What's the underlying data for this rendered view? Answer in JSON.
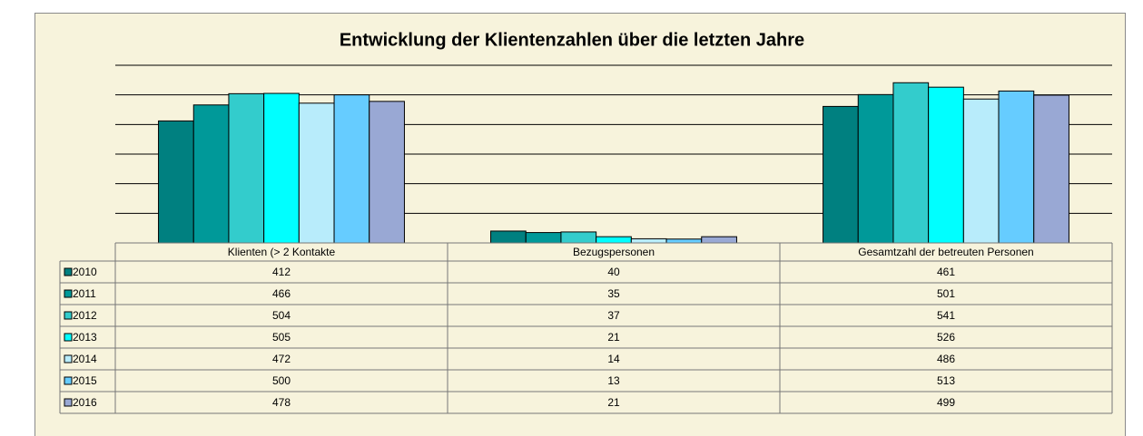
{
  "chart_data": {
    "type": "bar",
    "title": "Entwicklung der Klientenzahlen über die letzten Jahre",
    "categories": [
      "Klienten (> 2 Kontakte",
      "Bezugspersonen",
      "Gesamtzahl der betreuten Personen"
    ],
    "series": [
      {
        "name": "2010",
        "color": "#008080",
        "values": [
          412,
          40,
          461
        ]
      },
      {
        "name": "2011",
        "color": "#009999",
        "values": [
          466,
          35,
          501
        ]
      },
      {
        "name": "2012",
        "color": "#33cccc",
        "values": [
          504,
          37,
          541
        ]
      },
      {
        "name": "2013",
        "color": "#00ffff",
        "values": [
          505,
          21,
          526
        ]
      },
      {
        "name": "2014",
        "color": "#b8ecfb",
        "values": [
          472,
          14,
          486
        ]
      },
      {
        "name": "2015",
        "color": "#66ccff",
        "values": [
          500,
          13,
          513
        ]
      },
      {
        "name": "2016",
        "color": "#99a8d4",
        "values": [
          478,
          21,
          499
        ]
      }
    ],
    "ylim": [
      0,
      600
    ],
    "yticks": [
      0,
      100,
      200,
      300,
      400,
      500,
      600
    ],
    "grid": true
  }
}
